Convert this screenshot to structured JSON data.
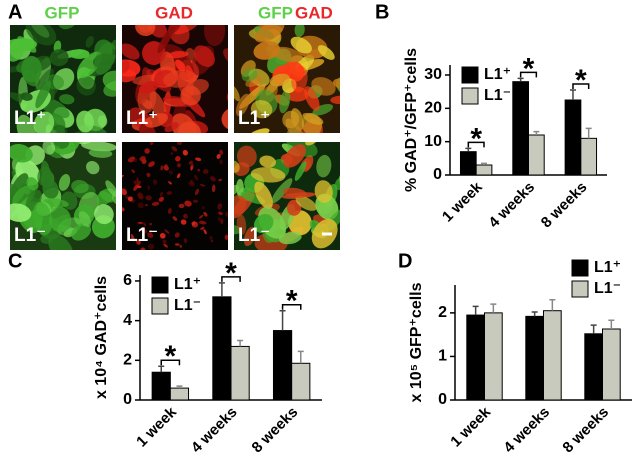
{
  "panel_a": {
    "label": "A",
    "header_gfp": "GFP",
    "header_gad": "GAD",
    "header_merge_gfp": "GFP",
    "header_merge_gad": "GAD",
    "row_labels": [
      "L1⁺",
      "L1⁻"
    ]
  },
  "chart_data": [
    {
      "type": "bar",
      "panel": "B",
      "y_label": "% GAD⁺/GFP⁺cells",
      "categories": [
        "1 week",
        "4 weeks",
        "8 weeks"
      ],
      "series": [
        {
          "name": "L1⁺",
          "color": "#000000",
          "values": [
            7,
            28,
            22.5
          ],
          "errors": [
            1,
            1,
            3
          ]
        },
        {
          "name": "L1⁻",
          "color": "#c8cabd",
          "values": [
            3,
            12,
            11
          ],
          "errors": [
            0.5,
            1,
            3
          ]
        }
      ],
      "ylim": [
        0,
        33
      ],
      "yticks": [
        0,
        10,
        20,
        30
      ],
      "significance": [
        "*",
        "*",
        "*"
      ],
      "legend": "top-left"
    },
    {
      "type": "bar",
      "panel": "C",
      "y_label": "x 10⁴ GAD⁺cells",
      "categories": [
        "1 week",
        "4 weeks",
        "8 weeks"
      ],
      "series": [
        {
          "name": "L1⁺",
          "color": "#000000",
          "values": [
            1.4,
            5.2,
            3.5
          ],
          "errors": [
            0.3,
            0.7,
            1.0
          ]
        },
        {
          "name": "L1⁻",
          "color": "#c8cabd",
          "values": [
            0.6,
            2.7,
            1.85
          ],
          "errors": [
            0.1,
            0.3,
            0.6
          ]
        }
      ],
      "ylim": [
        0,
        6.3
      ],
      "yticks": [
        0,
        2,
        4,
        6
      ],
      "significance": [
        "*",
        "*",
        "*"
      ],
      "legend": "top-left"
    },
    {
      "type": "bar",
      "panel": "D",
      "y_label": "x 10⁵ GFP⁺cells",
      "categories": [
        "1 week",
        "4 weeks",
        "8 weeks"
      ],
      "series": [
        {
          "name": "L1⁺",
          "color": "#000000",
          "values": [
            1.95,
            1.92,
            1.52
          ],
          "errors": [
            0.2,
            0.1,
            0.2
          ]
        },
        {
          "name": "L1⁻",
          "color": "#c8cabd",
          "values": [
            2.0,
            2.05,
            1.63
          ],
          "errors": [
            0.2,
            0.25,
            0.2
          ]
        }
      ],
      "ylim": [
        0,
        2.64
      ],
      "yticks": [
        0,
        1,
        2
      ],
      "legend": "top-right"
    }
  ]
}
